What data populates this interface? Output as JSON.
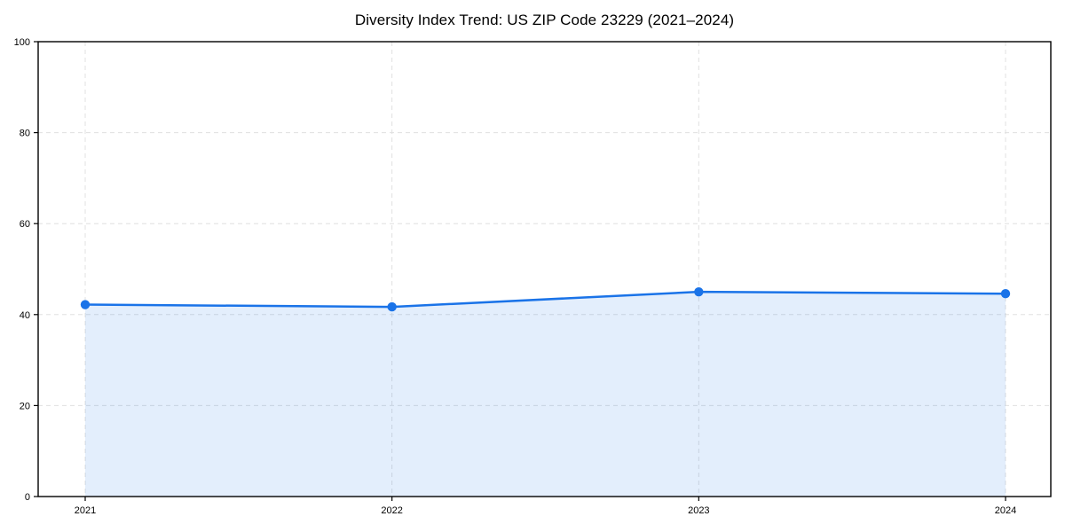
{
  "title": "Diversity Index Trend: US ZIP Code 23229 (2021–2024)",
  "chart_data": {
    "type": "line",
    "title": "Diversity Index Trend: US ZIP Code 23229 (2021–2024)",
    "x": [
      "2021",
      "2022",
      "2023",
      "2024"
    ],
    "series": [
      {
        "name": "Diversity Index",
        "values": [
          42.2,
          41.7,
          45.0,
          44.6
        ]
      }
    ],
    "xlabel": "",
    "ylabel": "",
    "ylim": [
      0,
      100
    ],
    "yticks": [
      0,
      20,
      40,
      60,
      80,
      100
    ],
    "grid": true,
    "grid_style": "dashed",
    "grid_color": "#e0e0e0",
    "legend_position": "none",
    "line_color": "#1a73e8",
    "fill_color": "rgba(26,115,232,0.12)",
    "marker": "circle",
    "axis_color": "#000000"
  }
}
